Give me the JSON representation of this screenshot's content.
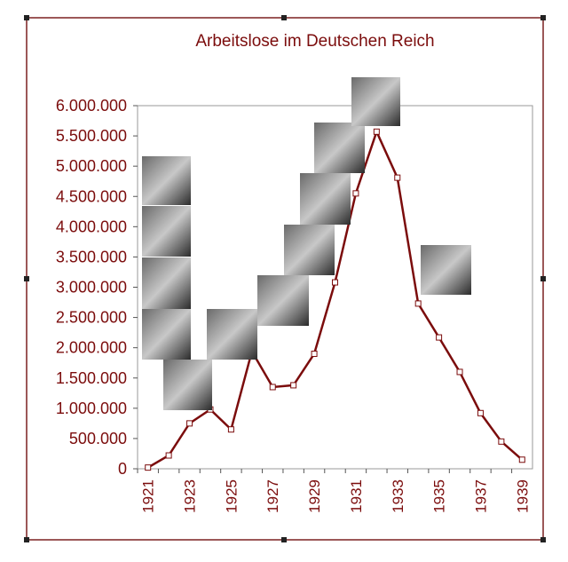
{
  "chart_data": {
    "type": "line",
    "title": "Arbeitslose im Deutschen Reich",
    "categories": [
      "1921",
      null,
      "1923",
      null,
      "1925",
      null,
      "1927",
      null,
      "1929",
      null,
      "1931",
      null,
      "1933",
      null,
      "1935",
      null,
      "1937",
      null,
      "1939"
    ],
    "values": [
      20000,
      220000,
      750000,
      980000,
      650000,
      1940000,
      1350000,
      1380000,
      1900000,
      3080000,
      4550000,
      5570000,
      4810000,
      2730000,
      2170000,
      1600000,
      920000,
      450000,
      150000
    ],
    "color": "#7b0c0c",
    "ylim": [
      0,
      6000000
    ],
    "yticks": [
      0,
      {
        "value": 500000,
        "label": "500.000"
      },
      {
        "value": 1000000,
        "label": "1.000.000"
      },
      {
        "value": 1500000,
        "label": "1.500.000"
      },
      {
        "value": 2000000,
        "label": "2.000.000"
      },
      {
        "value": 2500000,
        "label": "2.500.000"
      },
      {
        "value": 3000000,
        "label": "3.000.000"
      },
      {
        "value": 3500000,
        "label": "3.500.000"
      },
      {
        "value": 4000000,
        "label": "4.000.000"
      },
      {
        "value": 4500000,
        "label": "4.500.000"
      },
      {
        "value": 5000000,
        "label": "5.000.000"
      },
      {
        "value": 5500000,
        "label": "5.500.000"
      },
      {
        "value": 6000000,
        "label": "6.000.000"
      }
    ]
  }
}
